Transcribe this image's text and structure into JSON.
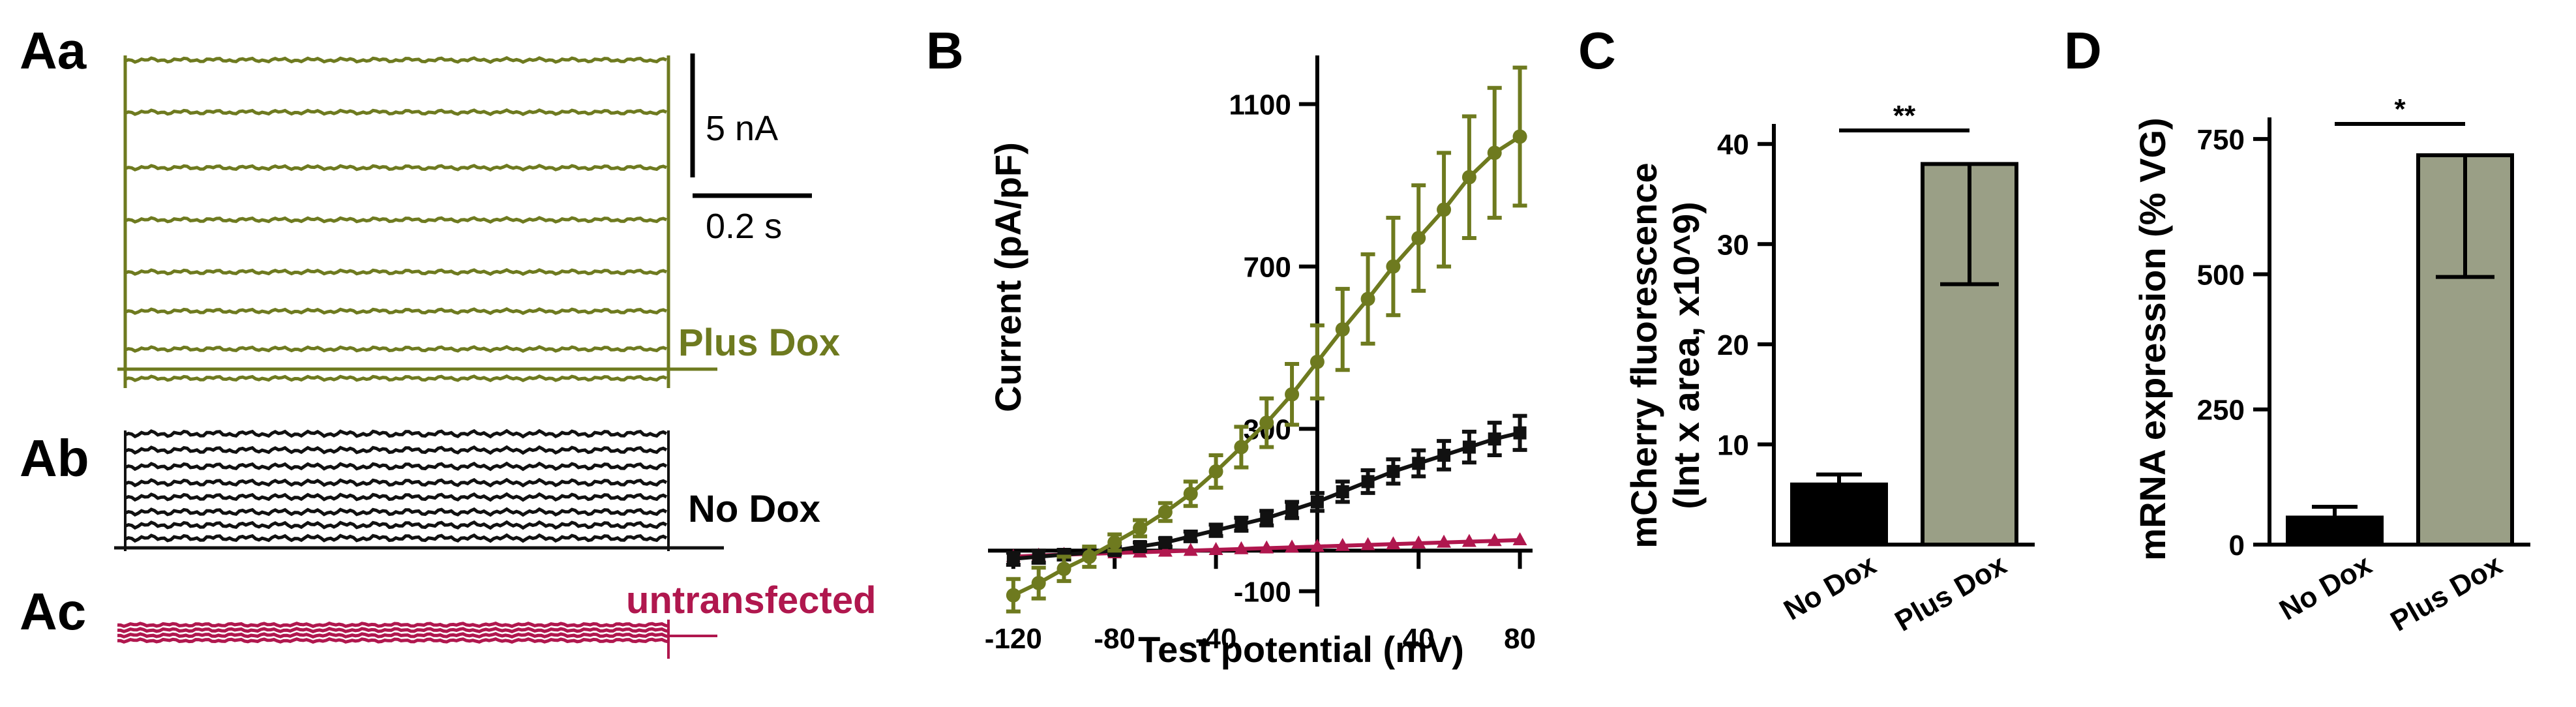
{
  "panels": {
    "Aa": "Aa",
    "Ab": "Ab",
    "Ac": "Ac",
    "B": "B",
    "C": "C",
    "D": "D"
  },
  "traces": {
    "scale_current": "5 nA",
    "scale_time": "0.2 s",
    "plus_dox_label": "Plus Dox",
    "no_dox_label": "No  Dox",
    "untransfected_label": "untransfected",
    "colors": {
      "plus_dox": "#6e7a1f",
      "no_dox": "#111111",
      "untransfected": "#b0174e"
    }
  },
  "chart_data": [
    {
      "id": "B",
      "type": "line",
      "title": "",
      "xlabel": "Test potential (mV)",
      "ylabel": "Current (pA/pF)",
      "xlim": [
        -130,
        85
      ],
      "ylim": [
        -170,
        1220
      ],
      "x_ticks": [
        -120,
        -80,
        -40,
        40,
        80
      ],
      "y_ticks": [
        -100,
        300,
        700,
        1100
      ],
      "x_tick_labels": [
        "-120",
        "-80",
        "-40",
        "40",
        "80"
      ],
      "y_tick_labels": [
        "-100",
        "300",
        "700",
        "1100"
      ],
      "series": [
        {
          "name": "Plus Dox",
          "color": "#6e7a1f",
          "marker": "circle",
          "x": [
            -120,
            -110,
            -100,
            -90,
            -80,
            -70,
            -60,
            -50,
            -40,
            -30,
            -20,
            -10,
            0,
            10,
            20,
            30,
            40,
            50,
            60,
            70,
            80
          ],
          "values": [
            -110,
            -80,
            -45,
            -15,
            20,
            55,
            95,
            140,
            195,
            255,
            315,
            385,
            465,
            545,
            620,
            700,
            770,
            840,
            920,
            980,
            1020
          ],
          "err": [
            40,
            38,
            30,
            25,
            20,
            20,
            22,
            30,
            40,
            50,
            60,
            75,
            90,
            100,
            110,
            120,
            130,
            140,
            150,
            160,
            170
          ]
        },
        {
          "name": "No Dox",
          "color": "#111111",
          "marker": "square",
          "x": [
            -120,
            -110,
            -100,
            -90,
            -80,
            -70,
            -60,
            -50,
            -40,
            -30,
            -20,
            -10,
            0,
            10,
            20,
            30,
            40,
            50,
            60,
            70,
            80
          ],
          "values": [
            -20,
            -15,
            -10,
            -5,
            0,
            10,
            20,
            35,
            50,
            65,
            80,
            100,
            120,
            145,
            170,
            195,
            215,
            235,
            255,
            275,
            290
          ],
          "err": [
            15,
            15,
            12,
            10,
            10,
            10,
            10,
            12,
            14,
            16,
            18,
            20,
            22,
            25,
            28,
            30,
            32,
            35,
            38,
            40,
            42
          ]
        },
        {
          "name": "untransfected",
          "color": "#b0174e",
          "marker": "triangle",
          "x": [
            -120,
            -110,
            -100,
            -90,
            -80,
            -70,
            -60,
            -50,
            -40,
            -30,
            -20,
            -10,
            0,
            10,
            20,
            30,
            40,
            50,
            60,
            70,
            80
          ],
          "values": [
            -15,
            -12,
            -10,
            -8,
            -6,
            -4,
            -2,
            0,
            2,
            4,
            6,
            8,
            10,
            12,
            14,
            16,
            18,
            20,
            22,
            24,
            26
          ],
          "err": [
            0,
            0,
            0,
            0,
            0,
            0,
            0,
            0,
            0,
            0,
            0,
            0,
            0,
            0,
            0,
            0,
            0,
            0,
            0,
            0,
            0
          ]
        }
      ]
    },
    {
      "id": "C",
      "type": "bar",
      "title": "",
      "xlabel": "",
      "ylabel": "mCherry fluorescence",
      "ylabel2": "(Int x area, x10^9)",
      "categories": [
        "No Dox",
        "Plus Dox"
      ],
      "values": [
        6,
        38
      ],
      "err_low": [
        0,
        12
      ],
      "err_high": [
        1,
        0
      ],
      "colors": [
        "#000000",
        "#9a9f86"
      ],
      "ylim": [
        0,
        42
      ],
      "y_ticks": [
        10,
        20,
        30,
        40
      ],
      "y_tick_labels": [
        "10",
        "20",
        "30",
        "40"
      ],
      "significance": "**"
    },
    {
      "id": "D",
      "type": "bar",
      "title": "",
      "xlabel": "",
      "ylabel": "mRNA expression (% VG)",
      "categories": [
        "No Dox",
        "Plus Dox"
      ],
      "values": [
        50,
        720
      ],
      "err_low": [
        0,
        225
      ],
      "err_high": [
        20,
        0
      ],
      "colors": [
        "#000000",
        "#9a9f86"
      ],
      "ylim": [
        0,
        790
      ],
      "y_ticks": [
        0,
        250,
        500,
        750
      ],
      "y_tick_labels": [
        "0",
        "250",
        "500",
        "750"
      ],
      "significance": "*"
    }
  ]
}
